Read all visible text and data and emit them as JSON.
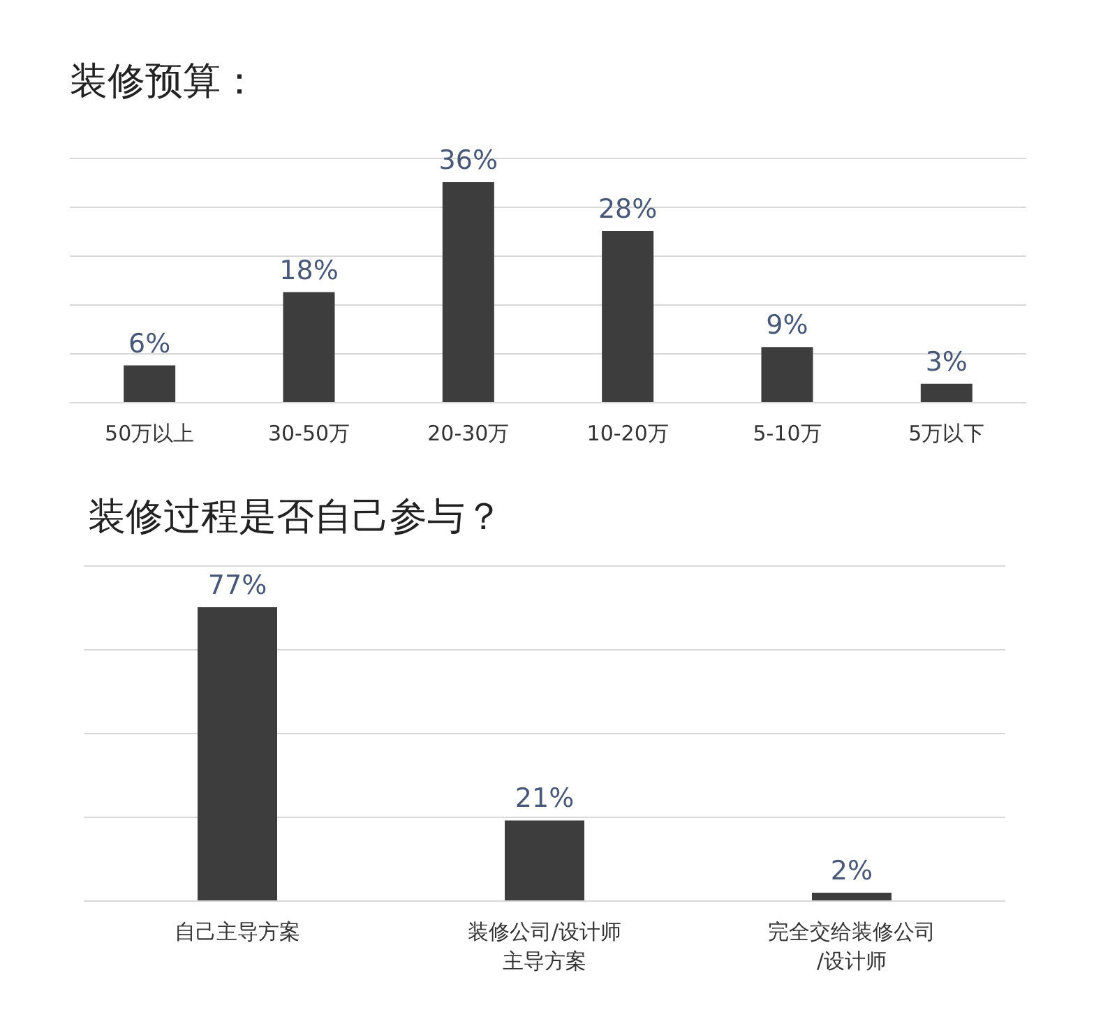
{
  "chart_data": [
    {
      "type": "bar",
      "title": "装修预算：",
      "categories": [
        "50万以上",
        "30-50万",
        "20-30万",
        "10-20万",
        "5-10万",
        "5万以下"
      ],
      "values": [
        6,
        18,
        36,
        28,
        9,
        3
      ],
      "color": "#3d3d3d",
      "value_labels": [
        "6%",
        "18%",
        "36%",
        "28%",
        "9%",
        "3%"
      ],
      "ylim": [
        0,
        40
      ],
      "yticks": [
        {
          "value": 0,
          "label": null
        },
        {
          "value": 8,
          "label": null
        },
        {
          "value": 16,
          "label": null
        },
        {
          "value": 24,
          "label": null
        },
        {
          "value": 32,
          "label": null
        },
        {
          "value": 40,
          "label": null
        }
      ],
      "tick_labels": "x",
      "grid": "y"
    },
    {
      "type": "bar",
      "title": "装修过程是否自己参与？",
      "categories": [
        "自己主导方案",
        "装修公司/设计师主导方案",
        "完全交给装修公司/设计师"
      ],
      "values": [
        77,
        21,
        2
      ],
      "color": "#3d3d3d",
      "value_labels": [
        "77%",
        "21%",
        "2%"
      ],
      "ylim": [
        0,
        88
      ],
      "yticks": [
        {
          "value": 0,
          "label": null
        },
        {
          "value": 22,
          "label": null
        },
        {
          "value": 44,
          "label": null
        },
        {
          "value": 66,
          "label": null
        },
        {
          "value": 88,
          "label": null
        }
      ],
      "tick_labels": "x",
      "grid": "y"
    }
  ]
}
